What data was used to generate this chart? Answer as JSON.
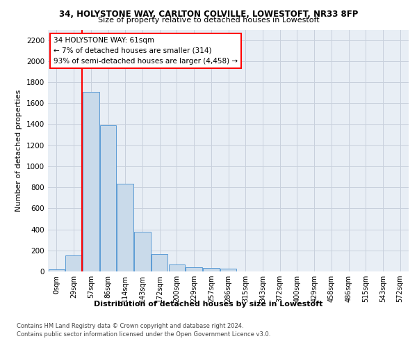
{
  "title_line1": "34, HOLYSTONE WAY, CARLTON COLVILLE, LOWESTOFT, NR33 8FP",
  "title_line2": "Size of property relative to detached houses in Lowestoft",
  "xlabel": "Distribution of detached houses by size in Lowestoft",
  "ylabel": "Number of detached properties",
  "bar_labels": [
    "0sqm",
    "29sqm",
    "57sqm",
    "86sqm",
    "114sqm",
    "143sqm",
    "172sqm",
    "200sqm",
    "229sqm",
    "257sqm",
    "286sqm",
    "315sqm",
    "343sqm",
    "372sqm",
    "400sqm",
    "429sqm",
    "458sqm",
    "486sqm",
    "515sqm",
    "543sqm",
    "572sqm"
  ],
  "bar_values": [
    18,
    155,
    1710,
    1390,
    835,
    380,
    165,
    65,
    38,
    30,
    28,
    0,
    0,
    0,
    0,
    0,
    0,
    0,
    0,
    0,
    0
  ],
  "bar_color": "#c9daea",
  "bar_edge_color": "#5b9bd5",
  "ylim": [
    0,
    2300
  ],
  "yticks": [
    0,
    200,
    400,
    600,
    800,
    1000,
    1200,
    1400,
    1600,
    1800,
    2000,
    2200
  ],
  "annotation_text": "34 HOLYSTONE WAY: 61sqm\n← 7% of detached houses are smaller (314)\n93% of semi-detached houses are larger (4,458) →",
  "redline_bar_index": 2,
  "footer_line1": "Contains HM Land Registry data © Crown copyright and database right 2024.",
  "footer_line2": "Contains public sector information licensed under the Open Government Licence v3.0.",
  "grid_color": "#c8d0dc",
  "background_color": "#e8eef5"
}
